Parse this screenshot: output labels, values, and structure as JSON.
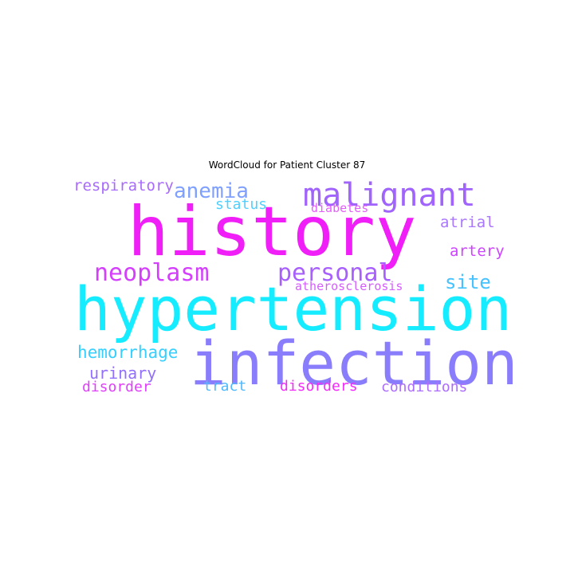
{
  "title": "WordCloud for Patient Cluster 87",
  "words": {
    "history": {
      "text": "history",
      "color": "#f01ff8"
    },
    "hypertension": {
      "text": "hypertension",
      "color": "#16ecff"
    },
    "infection": {
      "text": "infection",
      "color": "#8a7dfc"
    },
    "malignant": {
      "text": "malignant",
      "color": "#a063fc"
    },
    "personal": {
      "text": "personal",
      "color": "#a760fd"
    },
    "neoplasm": {
      "text": "neoplasm",
      "color": "#d43ffd"
    },
    "anemia": {
      "text": "anemia",
      "color": "#7fa0fe"
    },
    "site": {
      "text": "site",
      "color": "#45c2ff"
    },
    "respiratory": {
      "text": "respiratory",
      "color": "#a86bfd"
    },
    "status": {
      "text": "status",
      "color": "#4fd0ff"
    },
    "diabetes": {
      "text": "diabetes",
      "color": "#e65dfd"
    },
    "atrial": {
      "text": "atrial",
      "color": "#a978fd"
    },
    "artery": {
      "text": "artery",
      "color": "#cc46fd"
    },
    "atherosclerosis": {
      "text": "atherosclerosis",
      "color": "#d45efd"
    },
    "hemorrhage": {
      "text": "hemorrhage",
      "color": "#36cfff"
    },
    "urinary": {
      "text": "urinary",
      "color": "#9270fd"
    },
    "disorder": {
      "text": "disorder",
      "color": "#df3ffd"
    },
    "tract": {
      "text": "tract",
      "color": "#4fb8fe"
    },
    "disorders": {
      "text": "disorders",
      "color": "#f22bf9"
    },
    "conditions": {
      "text": "conditions",
      "color": "#ab6dfd"
    }
  }
}
